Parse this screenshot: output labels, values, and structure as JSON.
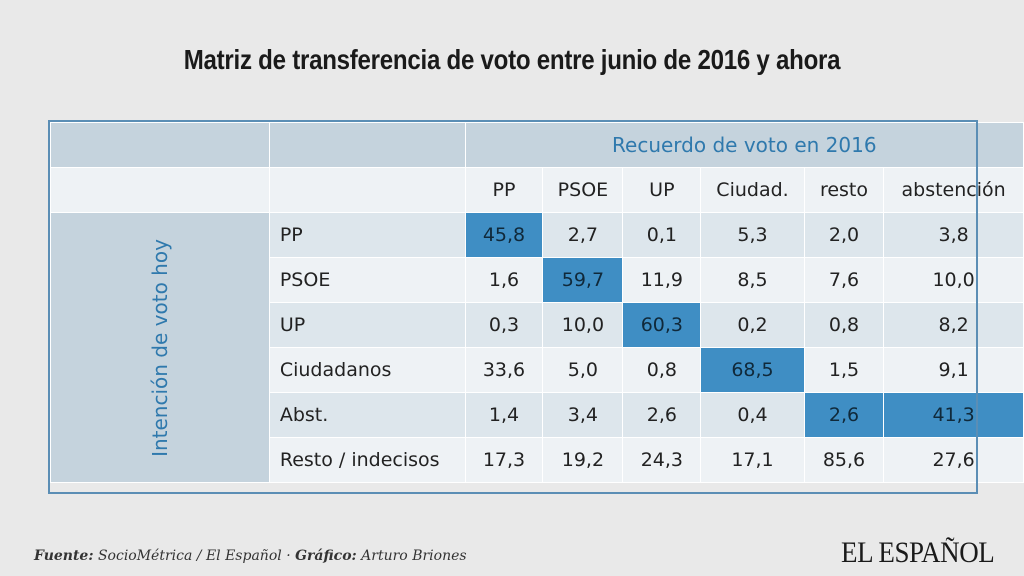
{
  "title": "Matriz de transferencia de voto entre junio de 2016 y ahora",
  "chart_data": {
    "type": "table",
    "title": "Matriz de transferencia de voto entre junio de 2016 y ahora",
    "column_group_label": "Recuerdo de voto en 2016",
    "row_group_label": "Intención de voto hoy",
    "columns": [
      "PP",
      "PSOE",
      "UP",
      "Ciudad.",
      "resto",
      "abstención"
    ],
    "rows": [
      {
        "label": "PP",
        "values": [
          "45,8",
          "2,7",
          "0,1",
          "5,3",
          "2,0",
          "3,8"
        ],
        "highlight": [
          0
        ]
      },
      {
        "label": "PSOE",
        "values": [
          "1,6",
          "59,7",
          "11,9",
          "8,5",
          "7,6",
          "10,0"
        ],
        "highlight": [
          1
        ]
      },
      {
        "label": "UP",
        "values": [
          "0,3",
          "10,0",
          "60,3",
          "0,2",
          "0,8",
          "8,2"
        ],
        "highlight": [
          2
        ]
      },
      {
        "label": "Ciudadanos",
        "values": [
          "33,6",
          "5,0",
          "0,8",
          "68,5",
          "1,5",
          "9,1"
        ],
        "highlight": [
          3
        ]
      },
      {
        "label": "Abst.",
        "values": [
          "1,4",
          "3,4",
          "2,6",
          "0,4",
          "2,6",
          "41,3"
        ],
        "highlight": [
          4,
          5
        ]
      },
      {
        "label": "Resto / indecisos",
        "values": [
          "17,3",
          "19,2",
          "24,3",
          "17,1",
          "85,6",
          "27,6"
        ],
        "highlight": []
      }
    ],
    "colors": {
      "highlight": "#3f8ec4",
      "accent_text": "#2f79ad",
      "cell": "#dde6ec"
    }
  },
  "footer": {
    "source_label": "Fuente:",
    "source_text": "SocioMétrica / El Español",
    "separator": "·",
    "graphic_label": "Gráfico:",
    "graphic_text": "Arturo Briones"
  },
  "logo": "EL ESPAÑOL"
}
